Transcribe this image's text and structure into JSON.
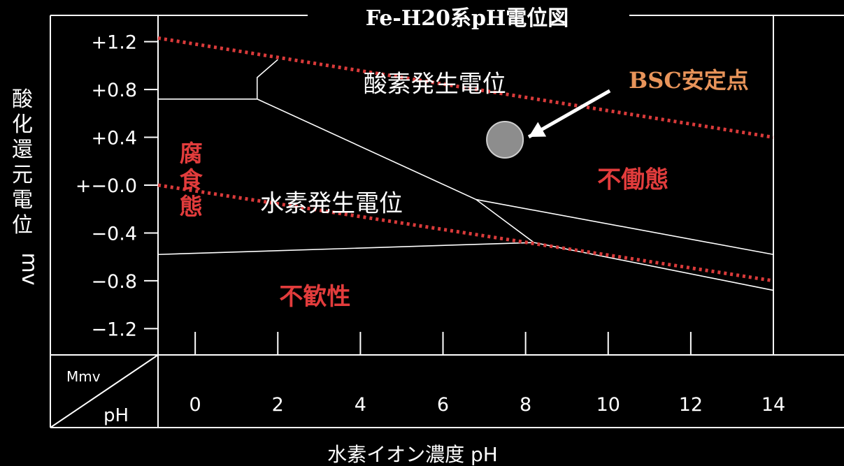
{
  "chart_data": {
    "type": "line",
    "title": "Fe-H20系pH電位図",
    "xlabel": "水素イオン濃度 pH",
    "ylabel_chars": [
      "酸",
      "化",
      "還",
      "元",
      "電",
      "位"
    ],
    "ylabel_unit": "mv",
    "corner_labels": {
      "y": "Mmv",
      "x": "pH"
    },
    "x_ticks": [
      0,
      2,
      4,
      6,
      8,
      10,
      12,
      14
    ],
    "y_ticks": [
      {
        "v": 1.2,
        "label": "+1.2"
      },
      {
        "v": 0.8,
        "label": "+0.8"
      },
      {
        "v": 0.4,
        "label": "+0.4"
      },
      {
        "v": 0.0,
        "label": "+−0.0"
      },
      {
        "v": -0.4,
        "label": "−0.4"
      },
      {
        "v": -0.8,
        "label": "−0.8"
      },
      {
        "v": -1.2,
        "label": "−1.2"
      }
    ],
    "xlim": [
      -0.9,
      14.0
    ],
    "ylim": [
      -1.42,
      1.42
    ],
    "series": [
      {
        "name": "酸素発生電位",
        "style": "red-dotted",
        "x": [
          -0.9,
          14.0
        ],
        "y": [
          1.23,
          0.4
        ]
      },
      {
        "name": "水素発生電位",
        "style": "red-dotted",
        "x": [
          -0.9,
          14.0
        ],
        "y": [
          0.0,
          -0.8
        ]
      }
    ],
    "boundaries": [
      {
        "x": [
          -0.9,
          1.5
        ],
        "y": [
          0.72,
          0.72
        ]
      },
      {
        "x": [
          1.5,
          1.5,
          2.0
        ],
        "y": [
          0.72,
          0.9,
          1.05
        ]
      },
      {
        "x": [
          1.5,
          6.8,
          8.2
        ],
        "y": [
          0.72,
          -0.12,
          -0.48
        ]
      },
      {
        "x": [
          -0.9,
          8.2
        ],
        "y": [
          -0.58,
          -0.48
        ]
      },
      {
        "x": [
          6.8,
          14.0
        ],
        "y": [
          -0.12,
          -0.58
        ]
      },
      {
        "x": [
          8.2,
          14.0
        ],
        "y": [
          -0.48,
          -0.88
        ]
      }
    ],
    "regions": [
      {
        "text": "腐食態",
        "x": -0.1,
        "y": 0.0,
        "vertical": true
      },
      {
        "text": "不働態",
        "x": 10.6,
        "y": -0.02
      },
      {
        "text": "不歓性",
        "x": 2.9,
        "y": -1.0
      }
    ],
    "point": {
      "label": "BSC安定点",
      "x": 7.5,
      "y": 0.38
    },
    "colors": {
      "grid": "#ffffff",
      "reference_lines": "#d93a3a",
      "marker": "#8d8d8d",
      "region_text": "#e23c3c",
      "point_label": "#e8945a"
    }
  }
}
